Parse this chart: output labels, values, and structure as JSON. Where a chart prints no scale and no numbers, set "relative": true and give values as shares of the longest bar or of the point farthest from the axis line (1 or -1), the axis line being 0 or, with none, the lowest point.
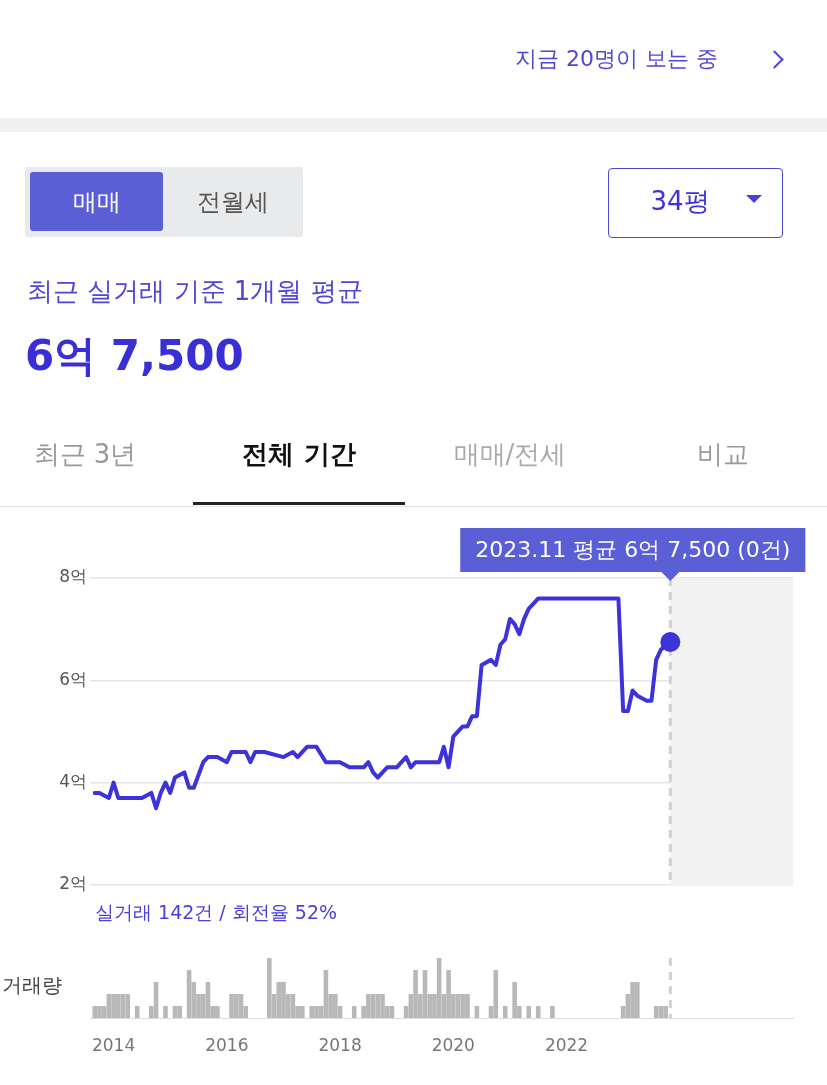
{
  "chart_data": [
    {
      "type": "line",
      "title": "최근 실거래 기준 1개월 평균",
      "subtitle": "6억 7,500",
      "annotations": [
        "지금 20명이 보는 중",
        "매매",
        "전월세",
        "34평",
        "최근 3년",
        "전체 기간",
        "매매/전세",
        "비교",
        "2023.11 평균 6억 7,500 (0건)"
      ],
      "x": [
        "2013-09",
        "2013-10",
        "2013-12",
        "2014-01",
        "2014-02",
        "2014-04",
        "2014-07",
        "2014-09",
        "2014-10",
        "2014-11",
        "2014-12",
        "2015-01",
        "2015-02",
        "2015-04",
        "2015-05",
        "2015-06",
        "2015-08",
        "2015-09",
        "2015-11",
        "2016-01",
        "2016-02",
        "2016-05",
        "2016-06",
        "2016-07",
        "2016-09",
        "2017-01",
        "2017-03",
        "2017-04",
        "2017-06",
        "2017-08",
        "2017-10",
        "2018-01",
        "2018-03",
        "2018-06",
        "2018-07",
        "2018-08",
        "2018-09",
        "2018-10",
        "2018-11",
        "2019-01",
        "2019-03",
        "2019-04",
        "2019-05",
        "2019-07",
        "2019-10",
        "2019-11",
        "2019-12",
        "2020-01",
        "2020-03",
        "2020-04",
        "2020-05",
        "2020-06",
        "2020-07",
        "2020-09",
        "2020-10",
        "2020-11",
        "2020-12",
        "2021-01",
        "2021-02",
        "2021-03",
        "2021-04",
        "2021-05",
        "2021-06",
        "2021-07",
        "2021-10",
        "2022-12",
        "2023-01",
        "2023-02",
        "2023-03",
        "2023-04",
        "2023-06",
        "2023-07",
        "2023-08",
        "2023-09",
        "2023-11"
      ],
      "series": [
        {
          "color": "#3d33d8",
          "values": [
            3.8,
            3.8,
            3.7,
            4.0,
            3.7,
            3.7,
            3.7,
            3.8,
            3.5,
            3.8,
            4.0,
            3.8,
            4.1,
            4.2,
            3.9,
            3.9,
            4.4,
            4.5,
            4.5,
            4.4,
            4.6,
            4.6,
            4.4,
            4.6,
            4.6,
            4.5,
            4.6,
            4.5,
            4.7,
            4.7,
            4.4,
            4.4,
            4.3,
            4.3,
            4.4,
            4.2,
            4.1,
            4.2,
            4.3,
            4.3,
            4.5,
            4.3,
            4.4,
            4.4,
            4.4,
            4.7,
            4.3,
            4.9,
            5.1,
            5.1,
            5.3,
            5.3,
            6.3,
            6.4,
            6.3,
            6.7,
            6.8,
            7.2,
            7.1,
            6.9,
            7.2,
            7.4,
            7.5,
            7.6,
            7.6,
            7.6,
            5.4,
            5.4,
            5.8,
            5.7,
            5.6,
            5.6,
            6.4,
            6.6,
            6.75
          ]
        }
      ],
      "xlim": [
        "2013-08",
        "2026-01"
      ],
      "xticks": [
        "2014",
        "2016",
        "2018",
        "2020",
        "2022"
      ],
      "ylim": [
        2,
        8
      ],
      "yticks": [
        {
          "value": 2,
          "label": "2억"
        },
        {
          "value": 4,
          "label": "4억"
        },
        {
          "value": 6,
          "label": "6억"
        },
        {
          "value": 8,
          "label": "8억"
        }
      ],
      "grid": "y",
      "tick_labels": "y",
      "marker": "none",
      "line_style": "solid",
      "bands": [
        {
          "axis": "x",
          "from": "2023-11",
          "to": "2026-01",
          "color": "#f2f2f2"
        }
      ],
      "ref_lines": [
        {
          "axis": "x",
          "value": "2023-11",
          "color": "#d0d0d0",
          "line_style": "dashed"
        }
      ]
    },
    {
      "type": "bar",
      "ylabel": "거래량",
      "relative": true,
      "annotations": [
        "실거래 142건 / 회전율 52%"
      ],
      "x": [
        "2013-09",
        "2013-10",
        "2013-11",
        "2013-12",
        "2014-01",
        "2014-02",
        "2014-03",
        "2014-04",
        "2014-06",
        "2014-09",
        "2014-10",
        "2014-12",
        "2015-02",
        "2015-03",
        "2015-05",
        "2015-06",
        "2015-07",
        "2015-08",
        "2015-09",
        "2015-10",
        "2015-11",
        "2016-02",
        "2016-03",
        "2016-04",
        "2016-05",
        "2016-10",
        "2016-11",
        "2016-12",
        "2017-01",
        "2017-02",
        "2017-03",
        "2017-04",
        "2017-05",
        "2017-07",
        "2017-08",
        "2017-09",
        "2017-10",
        "2017-11",
        "2017-12",
        "2018-01",
        "2018-04",
        "2018-06",
        "2018-07",
        "2018-08",
        "2018-09",
        "2018-10",
        "2018-11",
        "2018-12",
        "2019-03",
        "2019-04",
        "2019-05",
        "2019-06",
        "2019-07",
        "2019-08",
        "2019-09",
        "2019-10",
        "2019-11",
        "2019-12",
        "2020-01",
        "2020-02",
        "2020-03",
        "2020-04",
        "2020-06",
        "2020-09",
        "2020-10",
        "2020-12",
        "2021-02",
        "2021-03",
        "2021-05",
        "2021-07",
        "2021-10",
        "2023-01",
        "2023-02",
        "2023-03",
        "2023-04",
        "2023-08",
        "2023-09",
        "2023-10"
      ],
      "series": [
        {
          "color": "#b8b8b8",
          "values": [
            0.2,
            0.2,
            0.2,
            0.4,
            0.4,
            0.4,
            0.4,
            0.4,
            0.2,
            0.2,
            0.6,
            0.2,
            0.2,
            0.2,
            0.8,
            0.6,
            0.4,
            0.4,
            0.6,
            0.2,
            0.2,
            0.4,
            0.4,
            0.4,
            0.2,
            1,
            0.4,
            0.6,
            0.6,
            0.4,
            0.4,
            0.2,
            0.2,
            0.2,
            0.2,
            0.2,
            0.8,
            0.4,
            0.4,
            0.2,
            0.2,
            0.2,
            0.4,
            0.4,
            0.4,
            0.4,
            0.2,
            0.2,
            0.2,
            0.4,
            0.8,
            0.4,
            0.8,
            0.4,
            0.4,
            1,
            0.4,
            0.8,
            0.4,
            0.4,
            0.4,
            0.4,
            0.2,
            0.2,
            0.8,
            0.2,
            0.6,
            0.2,
            0.2,
            0.2,
            0.2,
            0.2,
            0.4,
            0.6,
            0.6,
            0.2,
            0.2,
            0.2
          ]
        }
      ],
      "xlim": [
        "2013-08",
        "2026-01"
      ],
      "xticks": [
        "2014",
        "2016",
        "2018",
        "2020",
        "2022"
      ],
      "tick_labels": "x",
      "ref_lines": [
        {
          "axis": "x",
          "value": "2023-11",
          "color": "#d0d0d0",
          "line_style": "dashed"
        }
      ]
    }
  ]
}
